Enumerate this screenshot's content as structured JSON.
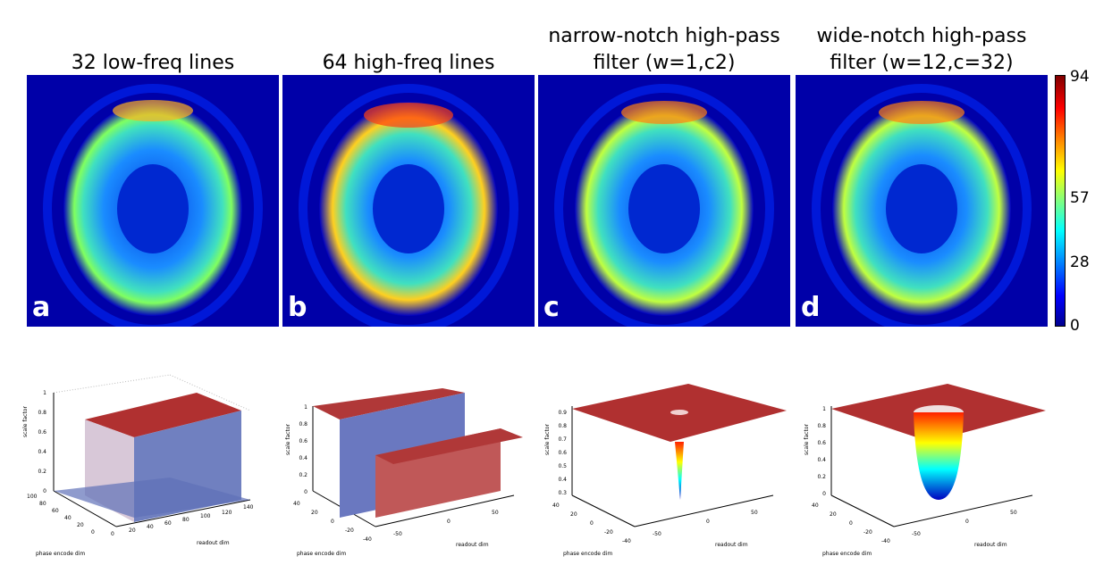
{
  "panels": [
    {
      "letter": "a",
      "title_lines": [
        "32 low-freq lines"
      ]
    },
    {
      "letter": "b",
      "title_lines": [
        "64 high-freq lines"
      ]
    },
    {
      "letter": "c",
      "title_lines": [
        "narrow-notch high-pass",
        "filter (w=1,c2)"
      ]
    },
    {
      "letter": "d",
      "title_lines": [
        "wide-notch high-pass",
        "filter (w=12,c=32)"
      ]
    }
  ],
  "colorbar": {
    "ticks": [
      "94",
      "57",
      "28",
      "0"
    ],
    "max": 94,
    "min": 0
  },
  "plots": [
    {
      "zlabel": "scale factor",
      "xlabel": "phase encode dim",
      "ylabel": "readout dim",
      "zticks": [
        "1",
        "0.8",
        "0.6",
        "0.4",
        "0.2",
        "0"
      ],
      "xticks": [
        "100",
        "80",
        "60",
        "40",
        "20",
        "0"
      ],
      "yticks": [
        "0",
        "20",
        "40",
        "60",
        "80",
        "100",
        "120",
        "140"
      ]
    },
    {
      "zlabel": "scale factor",
      "xlabel": "phase encode dim",
      "ylabel": "readout dim",
      "zticks": [
        "1",
        "0.8",
        "0.6",
        "0.4",
        "0.2",
        "0"
      ],
      "xticks": [
        "40",
        "20",
        "0",
        "-20",
        "-40"
      ],
      "yticks": [
        "-50",
        "0",
        "50"
      ]
    },
    {
      "zlabel": "scale factor",
      "xlabel": "phase encode dim",
      "ylabel": "readout dim",
      "zticks": [
        "0.9",
        "0.8",
        "0.7",
        "0.6",
        "0.5",
        "0.4",
        "0.3"
      ],
      "xticks": [
        "40",
        "20",
        "0",
        "-20",
        "-40"
      ],
      "yticks": [
        "-50",
        "0",
        "50"
      ]
    },
    {
      "zlabel": "scale factor",
      "xlabel": "phase encode dim",
      "ylabel": "readout dim",
      "zticks": [
        "1",
        "0.8",
        "0.6",
        "0.4",
        "0.2",
        "0"
      ],
      "xticks": [
        "40",
        "20",
        "0",
        "-20",
        "-40"
      ],
      "yticks": [
        "-50",
        "0",
        "50"
      ]
    }
  ]
}
